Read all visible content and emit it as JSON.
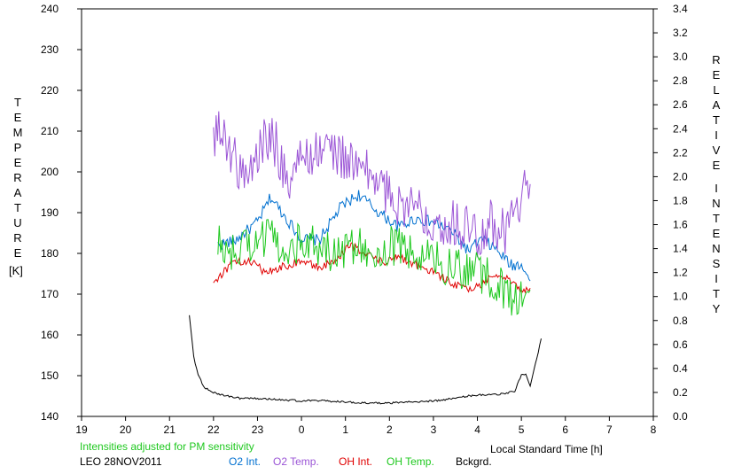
{
  "chart_data": {
    "type": "line",
    "x_axis": {
      "label": "Local Standard Time [h]",
      "min": 19,
      "max": 32,
      "ticks": [
        "19",
        "20",
        "21",
        "22",
        "23",
        "0",
        "1",
        "2",
        "3",
        "4",
        "5",
        "6",
        "7",
        "8"
      ]
    },
    "y_left": {
      "label_letters": [
        "T",
        "E",
        "M",
        "P",
        "E",
        "R",
        "A",
        "T",
        "U",
        "R",
        "E"
      ],
      "unit": "[K]",
      "min": 140,
      "max": 240,
      "ticks": [
        "140",
        "150",
        "160",
        "170",
        "180",
        "190",
        "200",
        "210",
        "220",
        "230",
        "240"
      ]
    },
    "y_right": {
      "label_letters_1": [
        "R",
        "E",
        "L",
        "A",
        "T",
        "I",
        "V",
        "E"
      ],
      "label_letters_2": [
        "I",
        "N",
        "T",
        "E",
        "N",
        "S",
        "I",
        "T",
        "Y"
      ],
      "min": 0,
      "max": 3.4,
      "ticks": [
        "0.0",
        "0.2",
        "0.4",
        "0.6",
        "0.8",
        "1.0",
        "1.2",
        "1.4",
        "1.6",
        "1.8",
        "2.0",
        "2.2",
        "2.4",
        "2.6",
        "2.8",
        "3.0",
        "3.2",
        "3.4"
      ]
    },
    "series": [
      {
        "name": "O2 Int.",
        "color": "#0070d0",
        "axis": "right",
        "x": [
          22.1,
          22.5,
          23.0,
          23.3,
          23.6,
          24.0,
          24.4,
          24.9,
          25.3,
          25.7,
          26.2,
          26.6,
          27.0,
          27.4,
          27.8,
          28.1,
          28.4,
          28.8,
          29.0,
          29.2
        ],
        "y": [
          1.43,
          1.47,
          1.62,
          1.83,
          1.68,
          1.48,
          1.47,
          1.75,
          1.85,
          1.72,
          1.58,
          1.65,
          1.62,
          1.55,
          1.38,
          1.48,
          1.4,
          1.25,
          1.28,
          1.13
        ]
      },
      {
        "name": "O2 Temp.",
        "color": "#9b55d6",
        "axis": "left",
        "x": [
          22.0,
          22.3,
          22.7,
          23.0,
          23.3,
          23.7,
          24.0,
          24.3,
          24.6,
          25.0,
          25.3,
          25.7,
          26.0,
          26.4,
          26.8,
          27.2,
          27.6,
          28.0,
          28.3,
          28.6,
          28.9,
          29.1,
          29.2
        ],
        "y": [
          210,
          208,
          198,
          204,
          210,
          198,
          203,
          205,
          206,
          203,
          201,
          198,
          194,
          192,
          190,
          188,
          187,
          185,
          188,
          185,
          190,
          197,
          197
        ]
      },
      {
        "name": "OH Int.",
        "color": "#e00000",
        "axis": "right",
        "x": [
          22.0,
          22.4,
          22.8,
          23.2,
          23.6,
          24.0,
          24.4,
          24.8,
          25.1,
          25.5,
          25.9,
          26.2,
          26.6,
          27.0,
          27.4,
          27.8,
          28.1,
          28.4,
          28.7,
          29.0,
          29.2
        ],
        "y": [
          1.12,
          1.27,
          1.3,
          1.2,
          1.25,
          1.3,
          1.24,
          1.3,
          1.43,
          1.35,
          1.28,
          1.33,
          1.27,
          1.2,
          1.12,
          1.05,
          1.1,
          1.2,
          1.15,
          1.05,
          1.07
        ]
      },
      {
        "name": "OH Temp.",
        "color": "#1ec81e",
        "axis": "left",
        "x": [
          22.1,
          22.5,
          22.9,
          23.3,
          23.7,
          24.1,
          24.5,
          24.9,
          25.3,
          25.7,
          26.1,
          26.5,
          26.9,
          27.3,
          27.7,
          28.1,
          28.5,
          28.9,
          29.2
        ],
        "y": [
          182,
          180,
          183,
          184,
          181,
          184,
          181,
          180,
          183,
          180,
          182,
          180,
          179,
          177,
          176,
          175,
          172,
          168,
          171
        ]
      },
      {
        "name": "Bckgrd.",
        "color": "#000000",
        "axis": "right",
        "x": [
          21.45,
          21.55,
          21.65,
          21.8,
          22.0,
          22.3,
          22.6,
          23.0,
          23.5,
          24.0,
          24.5,
          25.0,
          25.5,
          26.0,
          26.5,
          27.0,
          27.5,
          27.8,
          28.0,
          28.3,
          28.6,
          28.85,
          29.0,
          29.1,
          29.2,
          29.35,
          29.45
        ],
        "y": [
          0.85,
          0.5,
          0.34,
          0.24,
          0.2,
          0.17,
          0.15,
          0.15,
          0.14,
          0.13,
          0.13,
          0.12,
          0.11,
          0.11,
          0.12,
          0.13,
          0.15,
          0.17,
          0.18,
          0.18,
          0.19,
          0.21,
          0.35,
          0.35,
          0.26,
          0.48,
          0.65
        ]
      }
    ]
  },
  "annotations": {
    "note_sensitivity": "Intensities adjusted for PM sensitivity",
    "observation_id": "LEO 28NOV2011"
  }
}
